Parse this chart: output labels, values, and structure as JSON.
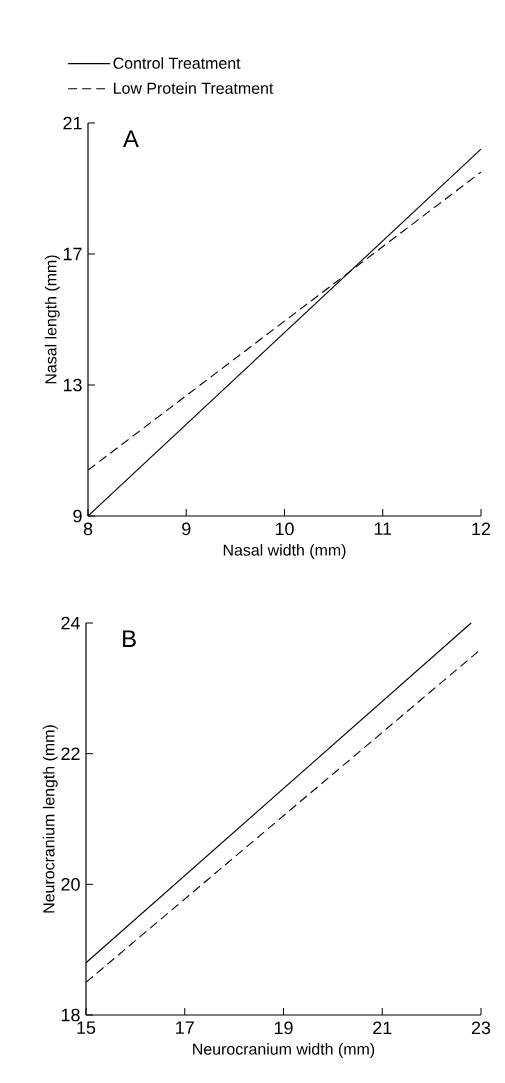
{
  "chart_data": [
    {
      "type": "line",
      "xlabel": "Nasal width (mm)",
      "ylabel": "Nasal length (mm)",
      "annotations": [
        "A"
      ],
      "xlim": [
        8,
        12
      ],
      "ylim": [
        9,
        21
      ],
      "xticks": [
        8,
        9,
        10,
        11,
        12
      ],
      "yticks": [
        9,
        13,
        17,
        21
      ],
      "legend": "top",
      "series": [
        {
          "name": "Control Treatment",
          "color": "#000000",
          "line_style": "solid",
          "x": [
            8,
            12
          ],
          "values": [
            9,
            20.2
          ]
        },
        {
          "name": "Low Protein Treatment",
          "color": "#000000",
          "line_style": "dashed",
          "x": [
            8,
            12
          ],
          "values": [
            10.4,
            19.5
          ]
        }
      ]
    },
    {
      "type": "line",
      "xlabel": "Neurocranium width (mm)",
      "ylabel": "Neurocranium length (mm)",
      "annotations": [
        "B"
      ],
      "xlim": [
        15,
        23
      ],
      "ylim": [
        18,
        24
      ],
      "xticks": [
        15,
        17,
        19,
        21,
        23
      ],
      "yticks": [
        18,
        20,
        22,
        24
      ],
      "series": [
        {
          "color": "#000000",
          "line_style": "solid",
          "x": [
            15,
            22.8
          ],
          "values": [
            18.8,
            24
          ]
        },
        {
          "color": "#000000",
          "line_style": "dashed",
          "x": [
            15,
            23
          ],
          "values": [
            18.5,
            23.6
          ]
        }
      ]
    }
  ]
}
